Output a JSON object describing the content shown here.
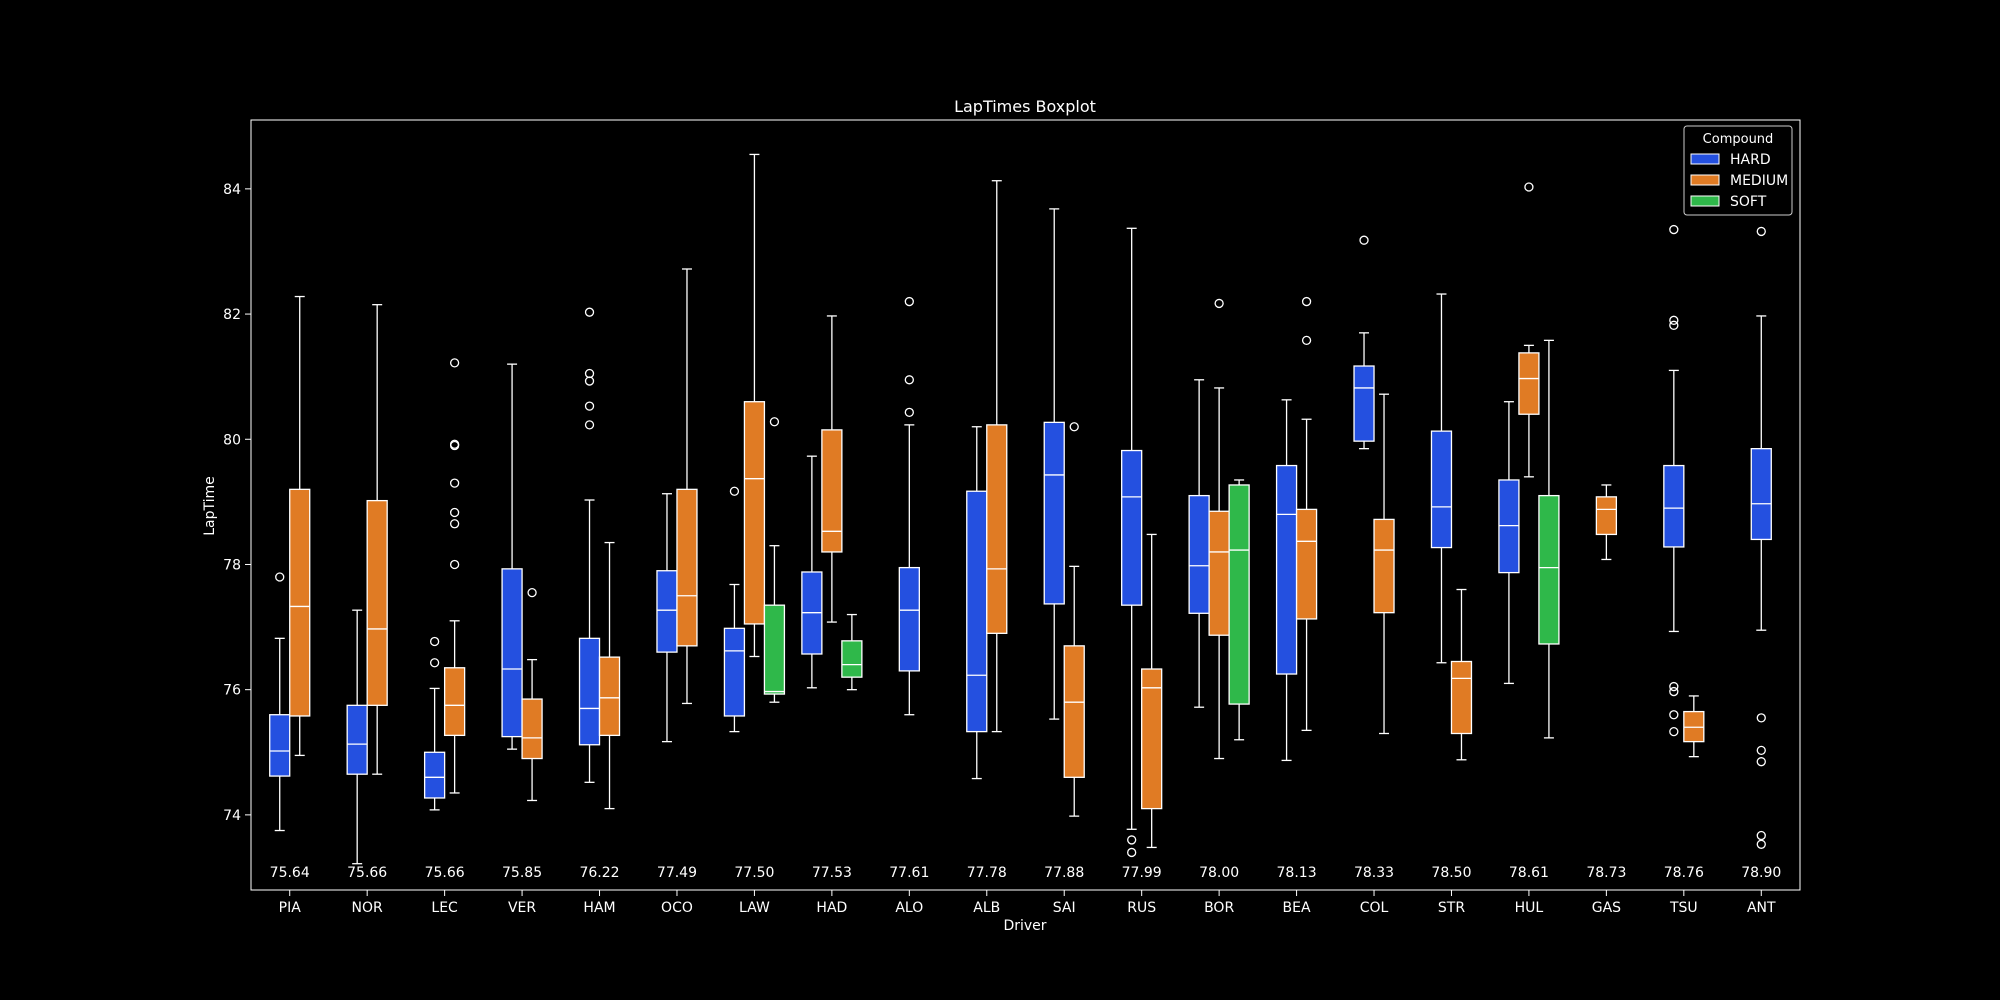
{
  "chart_data": {
    "type": "box",
    "title": "LapTimes Boxplot",
    "xlabel": "Driver",
    "ylabel": "LapTime",
    "ylim": [
      72.8,
      85.1
    ],
    "yticks": [
      74,
      76,
      78,
      80,
      82,
      84
    ],
    "grid": false,
    "legend": {
      "title": "Compound",
      "placement": "top-right",
      "entries": [
        {
          "name": "HARD",
          "color": "#2450e0"
        },
        {
          "name": "MEDIUM",
          "color": "#e07b24"
        },
        {
          "name": "SOFT",
          "color": "#2fb84a"
        }
      ]
    },
    "categories": [
      "PIA",
      "NOR",
      "LEC",
      "VER",
      "HAM",
      "OCO",
      "LAW",
      "HAD",
      "ALO",
      "ALB",
      "SAI",
      "RUS",
      "BOR",
      "BEA",
      "COL",
      "STR",
      "HUL",
      "GAS",
      "TSU",
      "ANT"
    ],
    "median_labels": [
      "75.64",
      "75.66",
      "75.66",
      "75.85",
      "76.22",
      "77.49",
      "77.50",
      "77.53",
      "77.61",
      "77.78",
      "77.88",
      "77.99",
      "78.00",
      "78.13",
      "78.33",
      "78.50",
      "78.61",
      "78.73",
      "78.76",
      "78.90"
    ],
    "series": [
      {
        "name": "HARD",
        "color": "#2450e0",
        "boxes": [
          {
            "driver": "PIA",
            "whislo": 73.75,
            "q1": 74.62,
            "med": 75.02,
            "q3": 75.6,
            "whishi": 76.82,
            "fliers": [
              77.8
            ]
          },
          {
            "driver": "NOR",
            "whislo": 73.22,
            "q1": 74.65,
            "med": 75.13,
            "q3": 75.75,
            "whishi": 77.27,
            "fliers": []
          },
          {
            "driver": "LEC",
            "whislo": 74.08,
            "q1": 74.27,
            "med": 74.6,
            "q3": 75.0,
            "whishi": 76.02,
            "fliers": [
              76.43,
              76.77
            ]
          },
          {
            "driver": "VER",
            "whislo": 75.05,
            "q1": 75.25,
            "med": 76.33,
            "q3": 77.93,
            "whishi": 81.2,
            "fliers": []
          },
          {
            "driver": "HAM",
            "whislo": 74.52,
            "q1": 75.12,
            "med": 75.7,
            "q3": 76.82,
            "whishi": 79.03,
            "fliers": [
              80.23,
              80.53,
              80.93,
              81.05,
              82.03
            ]
          },
          {
            "driver": "OCO",
            "whislo": 75.17,
            "q1": 76.6,
            "med": 77.27,
            "q3": 77.9,
            "whishi": 79.13,
            "fliers": []
          },
          {
            "driver": "LAW",
            "whislo": 75.33,
            "q1": 75.58,
            "med": 76.62,
            "q3": 76.98,
            "whishi": 77.68,
            "fliers": [
              79.17
            ]
          },
          {
            "driver": "HAD",
            "whislo": 76.03,
            "q1": 76.57,
            "med": 77.23,
            "q3": 77.88,
            "whishi": 79.73,
            "fliers": []
          },
          {
            "driver": "ALO",
            "whislo": 75.6,
            "q1": 76.3,
            "med": 77.27,
            "q3": 77.95,
            "whishi": 80.23,
            "fliers": [
              80.43,
              80.95,
              82.2
            ]
          },
          {
            "driver": "ALB",
            "whislo": 74.58,
            "q1": 75.33,
            "med": 76.23,
            "q3": 79.17,
            "whishi": 80.2,
            "fliers": []
          },
          {
            "driver": "SAI",
            "whislo": 75.53,
            "q1": 77.37,
            "med": 79.43,
            "q3": 80.27,
            "whishi": 83.68,
            "fliers": []
          },
          {
            "driver": "RUS",
            "whislo": 73.77,
            "q1": 77.35,
            "med": 79.08,
            "q3": 79.82,
            "whishi": 83.37,
            "fliers": [
              73.4,
              73.6
            ]
          },
          {
            "driver": "BOR",
            "whislo": 75.72,
            "q1": 77.22,
            "med": 77.98,
            "q3": 79.1,
            "whishi": 80.95,
            "fliers": []
          },
          {
            "driver": "BEA",
            "whislo": 74.87,
            "q1": 76.25,
            "med": 78.8,
            "q3": 79.58,
            "whishi": 80.63,
            "fliers": []
          },
          {
            "driver": "COL",
            "whislo": 79.85,
            "q1": 79.97,
            "med": 80.82,
            "q3": 81.17,
            "whishi": 81.7,
            "fliers": [
              83.18
            ]
          },
          {
            "driver": "STR",
            "whislo": 76.43,
            "q1": 78.27,
            "med": 78.92,
            "q3": 80.13,
            "whishi": 82.32,
            "fliers": []
          },
          {
            "driver": "HUL",
            "whislo": 76.1,
            "q1": 77.87,
            "med": 78.62,
            "q3": 79.35,
            "whishi": 80.6,
            "fliers": []
          },
          {
            "driver": "TSU",
            "whislo": 76.93,
            "q1": 78.28,
            "med": 78.9,
            "q3": 79.58,
            "whishi": 81.1,
            "fliers": [
              75.33,
              75.6,
              75.97,
              76.05,
              81.82,
              81.9,
              83.35
            ]
          },
          {
            "driver": "ANT",
            "whislo": 76.95,
            "q1": 78.4,
            "med": 78.97,
            "q3": 79.85,
            "whishi": 81.97,
            "fliers": [
              73.53,
              73.67,
              74.85,
              75.03,
              75.55,
              83.32
            ]
          }
        ]
      },
      {
        "name": "MEDIUM",
        "color": "#e07b24",
        "boxes": [
          {
            "driver": "PIA",
            "whislo": 74.95,
            "q1": 75.58,
            "med": 77.33,
            "q3": 79.2,
            "whishi": 82.28,
            "fliers": []
          },
          {
            "driver": "NOR",
            "whislo": 74.65,
            "q1": 75.75,
            "med": 76.97,
            "q3": 79.02,
            "whishi": 82.15,
            "fliers": []
          },
          {
            "driver": "LEC",
            "whislo": 74.35,
            "q1": 75.27,
            "med": 75.75,
            "q3": 76.35,
            "whishi": 77.1,
            "fliers": [
              78.0,
              78.65,
              78.83,
              79.3,
              79.9,
              79.92,
              81.22
            ]
          },
          {
            "driver": "VER",
            "whislo": 74.23,
            "q1": 74.9,
            "med": 75.23,
            "q3": 75.85,
            "whishi": 76.48,
            "fliers": [
              77.55
            ]
          },
          {
            "driver": "HAM",
            "whislo": 74.1,
            "q1": 75.27,
            "med": 75.87,
            "q3": 76.52,
            "whishi": 78.35,
            "fliers": []
          },
          {
            "driver": "OCO",
            "whislo": 75.78,
            "q1": 76.7,
            "med": 77.5,
            "q3": 79.2,
            "whishi": 82.72,
            "fliers": []
          },
          {
            "driver": "LAW",
            "whislo": 76.53,
            "q1": 77.05,
            "med": 79.37,
            "q3": 80.6,
            "whishi": 84.55,
            "fliers": []
          },
          {
            "driver": "HAD",
            "whislo": 77.08,
            "q1": 78.2,
            "med": 78.53,
            "q3": 80.15,
            "whishi": 81.97,
            "fliers": []
          },
          {
            "driver": "ALB",
            "whislo": 75.33,
            "q1": 76.9,
            "med": 77.93,
            "q3": 80.23,
            "whishi": 84.13,
            "fliers": []
          },
          {
            "driver": "SAI",
            "whislo": 73.98,
            "q1": 74.6,
            "med": 75.8,
            "q3": 76.7,
            "whishi": 77.97,
            "fliers": [
              80.2
            ]
          },
          {
            "driver": "RUS",
            "whislo": 73.48,
            "q1": 74.1,
            "med": 76.03,
            "q3": 76.33,
            "whishi": 78.48,
            "fliers": []
          },
          {
            "driver": "BOR",
            "whislo": 74.9,
            "q1": 76.87,
            "med": 78.2,
            "q3": 78.85,
            "whishi": 80.82,
            "fliers": [
              82.17
            ]
          },
          {
            "driver": "BEA",
            "whislo": 75.35,
            "q1": 77.13,
            "med": 78.37,
            "q3": 78.88,
            "whishi": 80.32,
            "fliers": [
              81.58,
              82.2
            ]
          },
          {
            "driver": "COL",
            "whislo": 75.3,
            "q1": 77.23,
            "med": 78.23,
            "q3": 78.72,
            "whishi": 80.72,
            "fliers": []
          },
          {
            "driver": "STR",
            "whislo": 74.88,
            "q1": 75.3,
            "med": 76.18,
            "q3": 76.45,
            "whishi": 77.6,
            "fliers": []
          },
          {
            "driver": "HUL",
            "whislo": 79.4,
            "q1": 80.4,
            "med": 80.97,
            "q3": 81.38,
            "whishi": 81.5,
            "fliers": [
              84.03
            ]
          },
          {
            "driver": "GAS",
            "whislo": 78.08,
            "q1": 78.48,
            "med": 78.88,
            "q3": 79.08,
            "whishi": 79.27,
            "fliers": []
          },
          {
            "driver": "TSU",
            "whislo": 74.93,
            "q1": 75.17,
            "med": 75.4,
            "q3": 75.65,
            "whishi": 75.9,
            "fliers": []
          }
        ]
      },
      {
        "name": "SOFT",
        "color": "#2fb84a",
        "boxes": [
          {
            "driver": "LAW",
            "whislo": 75.8,
            "q1": 75.93,
            "med": 75.97,
            "q3": 77.35,
            "whishi": 78.3,
            "fliers": [
              80.28
            ]
          },
          {
            "driver": "HAD",
            "whislo": 76.0,
            "q1": 76.2,
            "med": 76.4,
            "q3": 76.78,
            "whishi": 77.2,
            "fliers": []
          },
          {
            "driver": "BOR",
            "whislo": 75.2,
            "q1": 75.77,
            "med": 78.23,
            "q3": 79.27,
            "whishi": 79.35,
            "fliers": []
          },
          {
            "driver": "HUL",
            "whislo": 75.23,
            "q1": 76.73,
            "med": 77.95,
            "q3": 79.1,
            "whishi": 81.58,
            "fliers": []
          }
        ]
      }
    ]
  }
}
